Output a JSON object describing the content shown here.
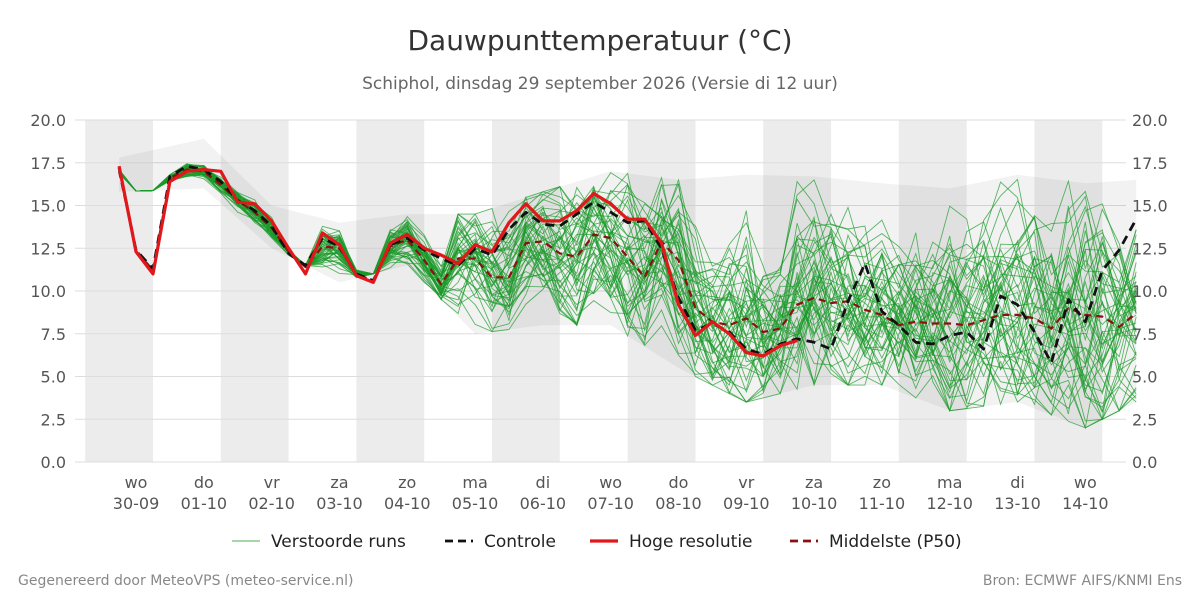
{
  "chart_data": {
    "type": "line",
    "title": "Dauwpunttemperatuur (°C)",
    "subtitle": "Schiphol, dinsdag 29 september 2026 (Versie di 12 uur)",
    "ylim": [
      0,
      20
    ],
    "yticks": [
      "0.0",
      "2.5",
      "5.0",
      "7.5",
      "10.0",
      "12.5",
      "15.0",
      "17.5",
      "20.0"
    ],
    "ytick_values": [
      0,
      2.5,
      5,
      7.5,
      10,
      12.5,
      15,
      17.5,
      20
    ],
    "xlim_days": [
      -0.9,
      14.6
    ],
    "grid": true,
    "legend_position": "bottom",
    "x_ticks": [
      {
        "day": "wo",
        "date": "30-09"
      },
      {
        "day": "do",
        "date": "01-10"
      },
      {
        "day": "vr",
        "date": "02-10"
      },
      {
        "day": "za",
        "date": "03-10"
      },
      {
        "day": "zo",
        "date": "04-10"
      },
      {
        "day": "ma",
        "date": "05-10"
      },
      {
        "day": "di",
        "date": "06-10"
      },
      {
        "day": "wo",
        "date": "07-10"
      },
      {
        "day": "do",
        "date": "08-10"
      },
      {
        "day": "vr",
        "date": "09-10"
      },
      {
        "day": "za",
        "date": "10-10"
      },
      {
        "day": "zo",
        "date": "11-10"
      },
      {
        "day": "ma",
        "date": "12-10"
      },
      {
        "day": "di",
        "date": "13-10"
      },
      {
        "day": "wo",
        "date": "14-10"
      }
    ],
    "shaded_day_ranges": [
      [
        -0.75,
        0.25
      ],
      [
        1.25,
        2.25
      ],
      [
        3.25,
        4.25
      ],
      [
        5.25,
        6.25
      ],
      [
        7.25,
        8.25
      ],
      [
        9.25,
        10.25
      ],
      [
        11.25,
        12.25
      ],
      [
        13.25,
        14.25
      ]
    ],
    "series": [
      {
        "name": "Hoge resolutie",
        "color": "#e0171b",
        "points": [
          [
            -0.25,
            17.3
          ],
          [
            0,
            12.3
          ],
          [
            0.25,
            11.0
          ],
          [
            0.5,
            16.4
          ],
          [
            0.75,
            17.0
          ],
          [
            1,
            17.1
          ],
          [
            1.25,
            17.0
          ],
          [
            1.5,
            15.2
          ],
          [
            1.75,
            15.1
          ],
          [
            2,
            14.1
          ],
          [
            2.25,
            12.5
          ],
          [
            2.5,
            11.0
          ],
          [
            2.75,
            13.4
          ],
          [
            3,
            12.7
          ],
          [
            3.25,
            10.9
          ],
          [
            3.5,
            10.5
          ],
          [
            3.75,
            12.8
          ],
          [
            4,
            13.3
          ],
          [
            4.25,
            12.5
          ],
          [
            4.5,
            12.1
          ],
          [
            4.75,
            11.6
          ],
          [
            5,
            12.7
          ],
          [
            5.25,
            12.3
          ],
          [
            5.5,
            14.0
          ],
          [
            5.75,
            15.1
          ],
          [
            6,
            14.1
          ],
          [
            6.25,
            14.1
          ],
          [
            6.5,
            14.7
          ],
          [
            6.75,
            15.7
          ],
          [
            7,
            15.1
          ],
          [
            7.25,
            14.2
          ],
          [
            7.5,
            14.2
          ],
          [
            7.75,
            12.8
          ],
          [
            8,
            9.2
          ],
          [
            8.25,
            7.4
          ],
          [
            8.5,
            8.2
          ],
          [
            8.75,
            7.5
          ],
          [
            9,
            6.4
          ],
          [
            9.25,
            6.2
          ],
          [
            9.5,
            6.8
          ],
          [
            9.75,
            7.1
          ]
        ]
      },
      {
        "name": "Controle",
        "color": "#111111",
        "points": [
          [
            -0.25,
            17.2
          ],
          [
            0,
            12.4
          ],
          [
            0.25,
            11.3
          ],
          [
            0.5,
            16.7
          ],
          [
            0.75,
            17.3
          ],
          [
            1,
            17.1
          ],
          [
            1.25,
            16.4
          ],
          [
            1.5,
            15.3
          ],
          [
            1.75,
            14.7
          ],
          [
            2,
            13.8
          ],
          [
            2.25,
            12.2
          ],
          [
            2.5,
            11.5
          ],
          [
            2.75,
            13.1
          ],
          [
            3,
            12.6
          ],
          [
            3.25,
            11.0
          ],
          [
            3.5,
            10.6
          ],
          [
            3.75,
            12.7
          ],
          [
            4,
            13.1
          ],
          [
            4.25,
            12.4
          ],
          [
            4.5,
            11.9
          ],
          [
            4.75,
            11.5
          ],
          [
            5,
            12.5
          ],
          [
            5.25,
            12.1
          ],
          [
            5.5,
            13.6
          ],
          [
            5.75,
            14.6
          ],
          [
            6,
            13.9
          ],
          [
            6.25,
            13.8
          ],
          [
            6.5,
            14.5
          ],
          [
            6.75,
            15.2
          ],
          [
            7,
            14.6
          ],
          [
            7.25,
            14.0
          ],
          [
            7.5,
            14.1
          ],
          [
            7.75,
            12.5
          ],
          [
            8,
            9.6
          ],
          [
            8.25,
            7.7
          ],
          [
            8.5,
            8.1
          ],
          [
            8.75,
            7.6
          ],
          [
            9,
            6.6
          ],
          [
            9.25,
            6.3
          ],
          [
            9.5,
            6.9
          ],
          [
            9.75,
            7.2
          ],
          [
            10,
            7.0
          ],
          [
            10.25,
            6.6
          ],
          [
            10.5,
            9.4
          ],
          [
            10.75,
            11.6
          ],
          [
            11,
            8.8
          ],
          [
            11.25,
            8.0
          ],
          [
            11.5,
            7.0
          ],
          [
            11.75,
            6.9
          ],
          [
            12,
            7.4
          ],
          [
            12.25,
            7.6
          ],
          [
            12.5,
            6.6
          ],
          [
            12.75,
            9.7
          ],
          [
            13,
            9.2
          ],
          [
            13.25,
            7.6
          ],
          [
            13.5,
            5.8
          ],
          [
            13.75,
            9.5
          ],
          [
            14,
            8.2
          ],
          [
            14.25,
            11.2
          ],
          [
            14.5,
            12.4
          ],
          [
            14.75,
            14.2
          ]
        ]
      },
      {
        "name": "Middelste (P50)",
        "color": "#8b1010",
        "points": [
          [
            -0.25,
            17.0
          ],
          [
            0,
            12.4
          ],
          [
            0.25,
            11.2
          ],
          [
            0.5,
            16.6
          ],
          [
            0.75,
            17.1
          ],
          [
            1,
            17.0
          ],
          [
            1.25,
            16.2
          ],
          [
            1.5,
            15.3
          ],
          [
            1.75,
            14.6
          ],
          [
            2,
            13.7
          ],
          [
            2.25,
            12.3
          ],
          [
            2.5,
            11.4
          ],
          [
            2.75,
            12.6
          ],
          [
            3,
            12.5
          ],
          [
            3.25,
            11.0
          ],
          [
            3.5,
            10.6
          ],
          [
            3.75,
            12.6
          ],
          [
            4,
            13.0
          ],
          [
            4.25,
            11.8
          ],
          [
            4.5,
            10.4
          ],
          [
            4.75,
            11.9
          ],
          [
            5,
            11.9
          ],
          [
            5.25,
            10.8
          ],
          [
            5.5,
            10.8
          ],
          [
            5.75,
            12.8
          ],
          [
            6,
            12.9
          ],
          [
            6.25,
            12.2
          ],
          [
            6.5,
            12.0
          ],
          [
            6.75,
            13.3
          ],
          [
            7,
            13.1
          ],
          [
            7.25,
            12.0
          ],
          [
            7.5,
            10.8
          ],
          [
            7.75,
            12.9
          ],
          [
            8,
            11.8
          ],
          [
            8.25,
            9.0
          ],
          [
            8.5,
            8.2
          ],
          [
            8.75,
            8.0
          ],
          [
            9,
            8.4
          ],
          [
            9.25,
            7.6
          ],
          [
            9.5,
            7.8
          ],
          [
            9.75,
            9.2
          ],
          [
            10,
            9.6
          ],
          [
            10.25,
            9.3
          ],
          [
            10.5,
            9.4
          ],
          [
            10.75,
            8.9
          ],
          [
            11,
            8.6
          ],
          [
            11.25,
            8.0
          ],
          [
            11.5,
            8.2
          ],
          [
            11.75,
            8.1
          ],
          [
            12,
            8.1
          ],
          [
            12.25,
            8.0
          ],
          [
            12.5,
            8.3
          ],
          [
            12.75,
            8.6
          ],
          [
            13,
            8.6
          ],
          [
            13.25,
            8.4
          ],
          [
            13.5,
            7.8
          ],
          [
            13.75,
            9.0
          ],
          [
            14,
            8.6
          ],
          [
            14.25,
            8.5
          ],
          [
            14.5,
            7.9
          ],
          [
            14.75,
            8.7
          ]
        ]
      }
    ],
    "ensemble": {
      "name": "Verstoorde runs",
      "color": "#1a9a2a",
      "member_count": 50,
      "step_days": 0.25,
      "start_day": -0.25,
      "end_day": 14.75,
      "median_points": [
        [
          -0.25,
          17.0
        ],
        [
          0,
          12.4
        ],
        [
          0.25,
          11.2
        ],
        [
          0.5,
          16.6
        ],
        [
          0.75,
          17.1
        ],
        [
          1,
          17.0
        ],
        [
          1.25,
          16.2
        ],
        [
          1.5,
          15.3
        ],
        [
          1.75,
          14.6
        ],
        [
          2,
          13.7
        ],
        [
          2.25,
          12.3
        ],
        [
          2.5,
          11.4
        ],
        [
          2.75,
          12.6
        ],
        [
          3,
          12.5
        ],
        [
          3.25,
          11.0
        ],
        [
          3.5,
          10.6
        ],
        [
          3.75,
          12.6
        ],
        [
          4,
          13.0
        ],
        [
          4.25,
          11.8
        ],
        [
          4.5,
          10.4
        ],
        [
          4.75,
          11.9
        ],
        [
          5,
          11.9
        ],
        [
          5.25,
          10.8
        ],
        [
          5.5,
          10.8
        ],
        [
          5.75,
          12.8
        ],
        [
          6,
          12.9
        ],
        [
          6.25,
          12.2
        ],
        [
          6.5,
          12.0
        ],
        [
          6.75,
          13.3
        ],
        [
          7,
          13.1
        ],
        [
          7.25,
          12.0
        ],
        [
          7.5,
          10.8
        ],
        [
          7.75,
          12.9
        ],
        [
          8,
          11.8
        ],
        [
          8.25,
          9.0
        ],
        [
          8.5,
          8.2
        ],
        [
          8.75,
          8.0
        ],
        [
          9,
          8.4
        ],
        [
          9.25,
          7.6
        ],
        [
          9.5,
          7.8
        ],
        [
          9.75,
          9.2
        ],
        [
          10,
          9.6
        ],
        [
          10.25,
          9.3
        ],
        [
          10.5,
          9.4
        ],
        [
          10.75,
          8.9
        ],
        [
          11,
          8.6
        ],
        [
          11.25,
          8.0
        ],
        [
          11.5,
          8.2
        ],
        [
          11.75,
          8.1
        ],
        [
          12,
          8.1
        ],
        [
          12.25,
          8.0
        ],
        [
          12.5,
          8.3
        ],
        [
          12.75,
          8.6
        ],
        [
          13,
          8.6
        ],
        [
          13.25,
          8.4
        ],
        [
          13.5,
          7.8
        ],
        [
          13.75,
          9.0
        ],
        [
          14,
          8.6
        ],
        [
          14.25,
          8.5
        ],
        [
          14.5,
          7.9
        ],
        [
          14.75,
          8.7
        ]
      ],
      "range_min": [
        [
          -0.25,
          15.8
        ],
        [
          1,
          16.0
        ],
        [
          2,
          12.5
        ],
        [
          3,
          10.5
        ],
        [
          4,
          11.5
        ],
        [
          5,
          7.5
        ],
        [
          6,
          8.0
        ],
        [
          7,
          8.0
        ],
        [
          8,
          5.5
        ],
        [
          9,
          3.5
        ],
        [
          10,
          4.5
        ],
        [
          11,
          4.5
        ],
        [
          12,
          3.0
        ],
        [
          13,
          3.5
        ],
        [
          14,
          2.0
        ],
        [
          14.75,
          3.5
        ]
      ],
      "range_max": [
        [
          -0.25,
          17.8
        ],
        [
          1,
          18.9
        ],
        [
          2,
          15.0
        ],
        [
          3,
          14.0
        ],
        [
          4,
          14.5
        ],
        [
          5,
          14.5
        ],
        [
          6,
          15.8
        ],
        [
          7,
          17.0
        ],
        [
          8,
          16.5
        ],
        [
          9,
          16.8
        ],
        [
          10,
          16.7
        ],
        [
          11,
          16.3
        ],
        [
          12,
          16.0
        ],
        [
          13,
          16.8
        ],
        [
          14,
          16.3
        ],
        [
          14.75,
          16.5
        ]
      ]
    }
  },
  "legend": {
    "items": [
      {
        "label": "Verstoorde runs",
        "style": "thin",
        "color": "#4caf50"
      },
      {
        "label": "Controle",
        "style": "dash",
        "color": "#111111"
      },
      {
        "label": "Hoge resolutie",
        "style": "solid",
        "color": "#e0171b"
      },
      {
        "label": "Middelste (P50)",
        "style": "dash",
        "color": "#8b1010"
      }
    ]
  },
  "footer": {
    "left": "Gegenereerd door MeteoVPS (meteo-service.nl)",
    "right": "Bron: ECMWF AIFS/KNMI Ens"
  }
}
